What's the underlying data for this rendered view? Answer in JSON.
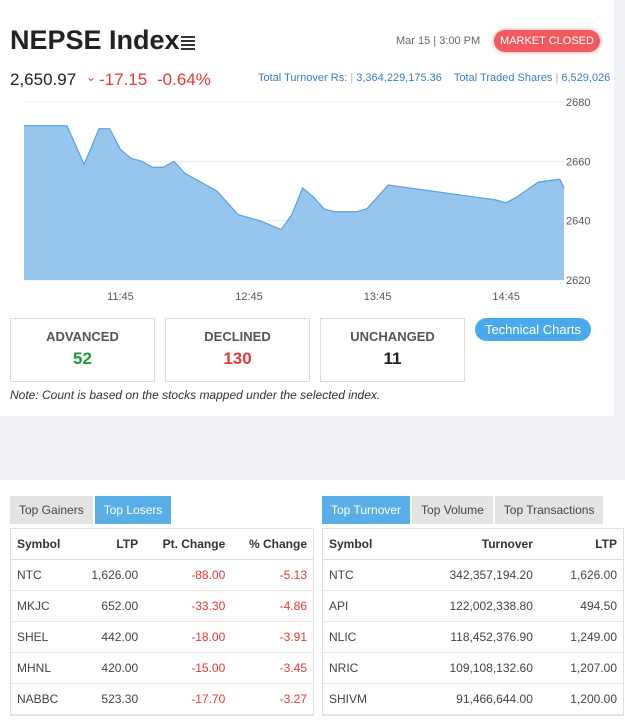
{
  "header": {
    "title": "NEPSE Index",
    "datetime": "Mar 15 | 3:00 PM",
    "status_badge": "MARKET CLOSED",
    "index_value": "2,650.97",
    "change": "-17.15",
    "percent_change": "-0.64%",
    "turnover_label": "Total Turnover Rs:",
    "turnover_value": "3,364,229,175.36",
    "shares_label": "Total Traded Shares",
    "shares_value": "6,529,026"
  },
  "chart_data": {
    "type": "area",
    "x_ticks": [
      "11:45",
      "12:45",
      "13:45",
      "14:45"
    ],
    "y_ticks": [
      2620,
      2640,
      2660,
      2680
    ],
    "ylim": [
      2620,
      2680
    ],
    "xlim_minutes": [
      0,
      252
    ],
    "x": [
      0,
      10,
      20,
      25,
      28,
      31,
      35,
      40,
      45,
      50,
      55,
      60,
      65,
      70,
      75,
      80,
      90,
      100,
      110,
      120,
      125,
      130,
      135,
      140,
      145,
      150,
      155,
      160,
      165,
      170,
      180,
      190,
      200,
      210,
      220,
      225,
      230,
      240,
      250,
      252
    ],
    "y": [
      2672,
      2672,
      2672,
      2664,
      2659,
      2664,
      2671,
      2671,
      2664,
      2661,
      2660,
      2658,
      2658,
      2660,
      2656,
      2654,
      2650,
      2642,
      2640,
      2637,
      2642,
      2651,
      2648,
      2644,
      2643,
      2643,
      2643,
      2644,
      2648,
      2652,
      2651,
      2650,
      2649,
      2648,
      2647,
      2646,
      2648,
      2653,
      2654,
      2651
    ]
  },
  "stats": {
    "advanced_label": "ADVANCED",
    "advanced_value": "52",
    "declined_label": "DECLINED",
    "declined_value": "130",
    "unchanged_label": "UNCHANGED",
    "unchanged_value": "11"
  },
  "tech_button": "Technical Charts",
  "note": "Note: Count is based on the stocks mapped under the selected index.",
  "colors": {
    "positive": "#1a9c3e",
    "negative": "#e53935",
    "accent": "#4aa8ec",
    "area_fill": "#96c6ee",
    "area_line": "#5b9fdc"
  },
  "left_panel": {
    "tabs": [
      "Top Gainers",
      "Top Losers"
    ],
    "active_tab": "Top Losers",
    "columns": [
      "Symbol",
      "LTP",
      "Pt. Change",
      "% Change"
    ],
    "rows": [
      [
        "NTC",
        "1,626.00",
        "-88.00",
        "-5.13"
      ],
      [
        "MKJC",
        "652.00",
        "-33.30",
        "-4.86"
      ],
      [
        "SHEL",
        "442.00",
        "-18.00",
        "-3.91"
      ],
      [
        "MHNL",
        "420.00",
        "-15.00",
        "-3.45"
      ],
      [
        "NABBC",
        "523.30",
        "-17.70",
        "-3.27"
      ]
    ]
  },
  "right_panel": {
    "tabs": [
      "Top Turnover",
      "Top Volume",
      "Top Transactions"
    ],
    "active_tab": "Top Turnover",
    "columns": [
      "Symbol",
      "Turnover",
      "LTP"
    ],
    "rows": [
      [
        "NTC",
        "342,357,194.20",
        "1,626.00"
      ],
      [
        "API",
        "122,002,338.80",
        "494.50"
      ],
      [
        "NLIC",
        "118,452,376.90",
        "1,249.00"
      ],
      [
        "NRIC",
        "109,108,132.60",
        "1,207.00"
      ],
      [
        "SHIVM",
        "91,466,644.00",
        "1,200.00"
      ]
    ]
  }
}
